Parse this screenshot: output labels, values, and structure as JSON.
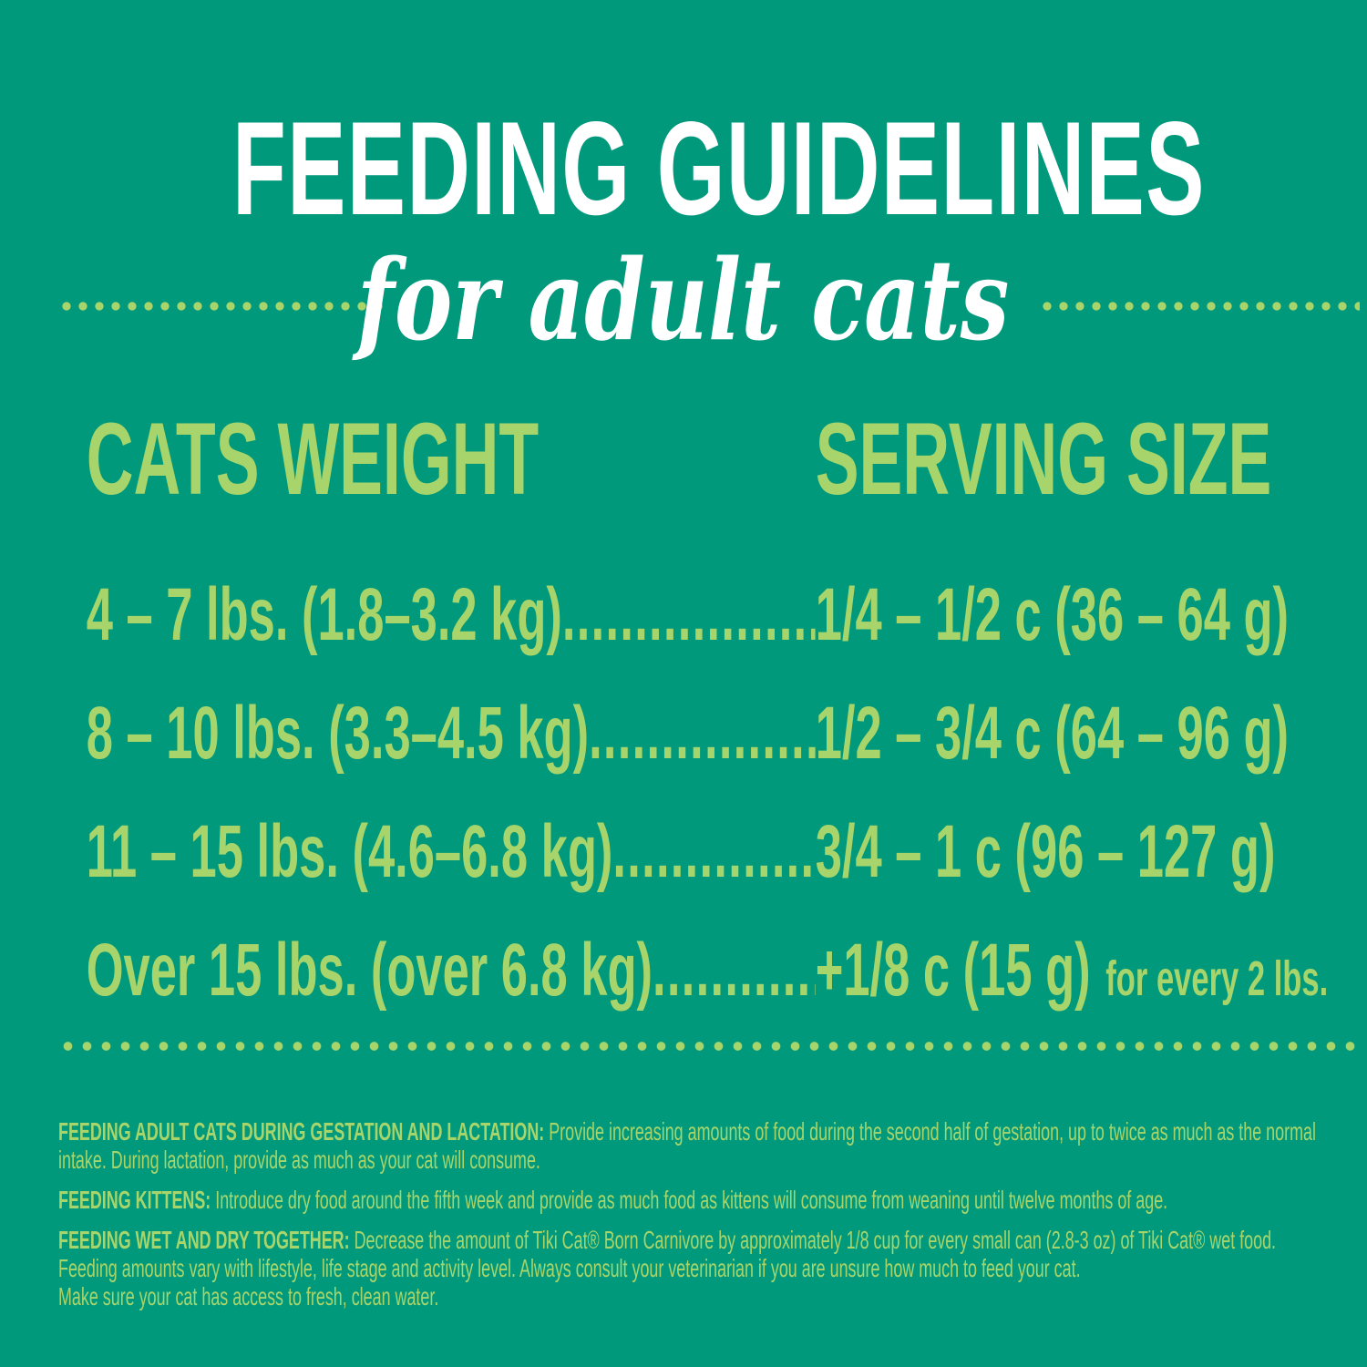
{
  "page": {
    "background_color": "#00997b",
    "accent_green": "#a7d56c",
    "title_color": "#ffffff"
  },
  "header": {
    "title": "FEEDING GUIDELINES",
    "subtitle": "for adult cats"
  },
  "table": {
    "columns": [
      "CATS WEIGHT",
      "SERVING SIZE"
    ],
    "rows": [
      {
        "weight": "4 – 7 lbs. (1.8–3.2 kg)",
        "leader": "....................................",
        "serving": "1/4 – 1/2 c (36 – 64 g)",
        "suffix": ""
      },
      {
        "weight": "8 – 10 lbs. (3.3–4.5 kg)",
        "leader": "....................................",
        "serving": "1/2 – 3/4 c (64 – 96 g)",
        "suffix": ""
      },
      {
        "weight": "11 – 15 lbs. (4.6–6.8 kg)",
        "leader": "....................................",
        "serving": "3/4 – 1 c (96 – 127 g)",
        "suffix": ""
      },
      {
        "weight": "Over 15 lbs. (over 6.8 kg)",
        "leader": "....................................",
        "serving": "+1/8 c (15 g)",
        "suffix": "for every 2 lbs."
      }
    ]
  },
  "footnotes": [
    {
      "label": "FEEDING ADULT CATS DURING GESTATION AND LACTATION:",
      "text": "Provide increasing amounts of food during the second half of gestation, up to twice as much as the normal\nintake.  During lactation, provide as much as your cat will consume."
    },
    {
      "label": "FEEDING KITTENS:",
      "text": "Introduce dry food around the fifth week and provide as much food as kittens will consume from weaning until twelve months of age."
    },
    {
      "label": "FEEDING WET AND DRY TOGETHER:",
      "text": "Decrease the amount of Tiki Cat® Born Carnivore by approximately 1/8 cup for every small can (2.8-3 oz) of Tiki Cat® wet food.\nFeeding amounts vary with lifestyle, life stage and activity level.  Always consult your veterinarian if you are unsure how much to feed your cat.\nMake sure your cat has access to fresh, clean water."
    }
  ]
}
